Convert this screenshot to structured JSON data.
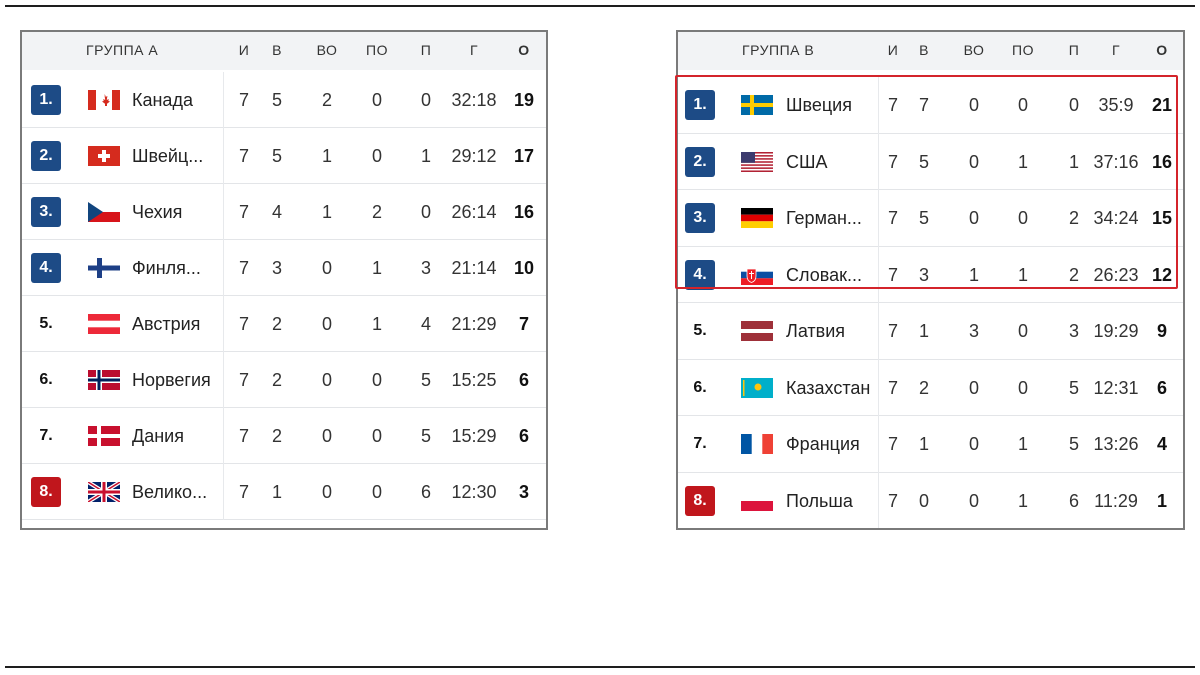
{
  "colors": {
    "qualified_badge": "#1d4b86",
    "relegated_badge": "#c0161c",
    "highlight_border": "#d4242b",
    "header_bg": "#f2f3f5"
  },
  "columns": {
    "games": "И",
    "wins": "В",
    "ot_wins": "ВО",
    "ot_losses": "ПО",
    "losses": "П",
    "goals": "Г",
    "points": "О"
  },
  "group_a": {
    "title": "ГРУППА А",
    "rows": [
      {
        "rank": "1.",
        "flag": "canada-flag",
        "team": "Канада",
        "g": "7",
        "w": "5",
        "wo": "2",
        "lo": "0",
        "l": "0",
        "goals": "32:18",
        "pts": "19",
        "status": "q"
      },
      {
        "rank": "2.",
        "flag": "switzerland-flag",
        "team": "Швейц...",
        "g": "7",
        "w": "5",
        "wo": "1",
        "lo": "0",
        "l": "1",
        "goals": "29:12",
        "pts": "17",
        "status": "q"
      },
      {
        "rank": "3.",
        "flag": "czechia-flag",
        "team": "Чехия",
        "g": "7",
        "w": "4",
        "wo": "1",
        "lo": "2",
        "l": "0",
        "goals": "26:14",
        "pts": "16",
        "status": "q"
      },
      {
        "rank": "4.",
        "flag": "finland-flag",
        "team": "Финля...",
        "g": "7",
        "w": "3",
        "wo": "0",
        "lo": "1",
        "l": "3",
        "goals": "21:14",
        "pts": "10",
        "status": "q"
      },
      {
        "rank": "5.",
        "flag": "austria-flag",
        "team": "Австрия",
        "g": "7",
        "w": "2",
        "wo": "0",
        "lo": "1",
        "l": "4",
        "goals": "21:29",
        "pts": "7",
        "status": "n"
      },
      {
        "rank": "6.",
        "flag": "norway-flag",
        "team": "Норвегия",
        "g": "7",
        "w": "2",
        "wo": "0",
        "lo": "0",
        "l": "5",
        "goals": "15:25",
        "pts": "6",
        "status": "n"
      },
      {
        "rank": "7.",
        "flag": "denmark-flag",
        "team": "Дания",
        "g": "7",
        "w": "2",
        "wo": "0",
        "lo": "0",
        "l": "5",
        "goals": "15:29",
        "pts": "6",
        "status": "n"
      },
      {
        "rank": "8.",
        "flag": "great-britain-flag",
        "team": "Велико...",
        "g": "7",
        "w": "1",
        "wo": "0",
        "lo": "0",
        "l": "6",
        "goals": "12:30",
        "pts": "3",
        "status": "r"
      }
    ]
  },
  "group_b": {
    "title": "ГРУППА В",
    "rows": [
      {
        "rank": "1.",
        "flag": "sweden-flag",
        "team": "Швеция",
        "g": "7",
        "w": "7",
        "wo": "0",
        "lo": "0",
        "l": "0",
        "goals": "35:9",
        "pts": "21",
        "status": "q"
      },
      {
        "rank": "2.",
        "flag": "usa-flag",
        "team": "США",
        "g": "7",
        "w": "5",
        "wo": "0",
        "lo": "1",
        "l": "1",
        "goals": "37:16",
        "pts": "16",
        "status": "q"
      },
      {
        "rank": "3.",
        "flag": "germany-flag",
        "team": "Герман...",
        "g": "7",
        "w": "5",
        "wo": "0",
        "lo": "0",
        "l": "2",
        "goals": "34:24",
        "pts": "15",
        "status": "q"
      },
      {
        "rank": "4.",
        "flag": "slovakia-flag",
        "team": "Словак...",
        "g": "7",
        "w": "3",
        "wo": "1",
        "lo": "1",
        "l": "2",
        "goals": "26:23",
        "pts": "12",
        "status": "q"
      },
      {
        "rank": "5.",
        "flag": "latvia-flag",
        "team": "Латвия",
        "g": "7",
        "w": "1",
        "wo": "3",
        "lo": "0",
        "l": "3",
        "goals": "19:29",
        "pts": "9",
        "status": "n"
      },
      {
        "rank": "6.",
        "flag": "kazakhstan-flag",
        "team": "Казахстан",
        "g": "7",
        "w": "2",
        "wo": "0",
        "lo": "0",
        "l": "5",
        "goals": "12:31",
        "pts": "6",
        "status": "n"
      },
      {
        "rank": "7.",
        "flag": "france-flag",
        "team": "Франция",
        "g": "7",
        "w": "1",
        "wo": "0",
        "lo": "1",
        "l": "5",
        "goals": "13:26",
        "pts": "4",
        "status": "n"
      },
      {
        "rank": "8.",
        "flag": "poland-flag",
        "team": "Польша",
        "g": "7",
        "w": "0",
        "wo": "0",
        "lo": "1",
        "l": "6",
        "goals": "11:29",
        "pts": "1",
        "status": "r"
      }
    ]
  }
}
